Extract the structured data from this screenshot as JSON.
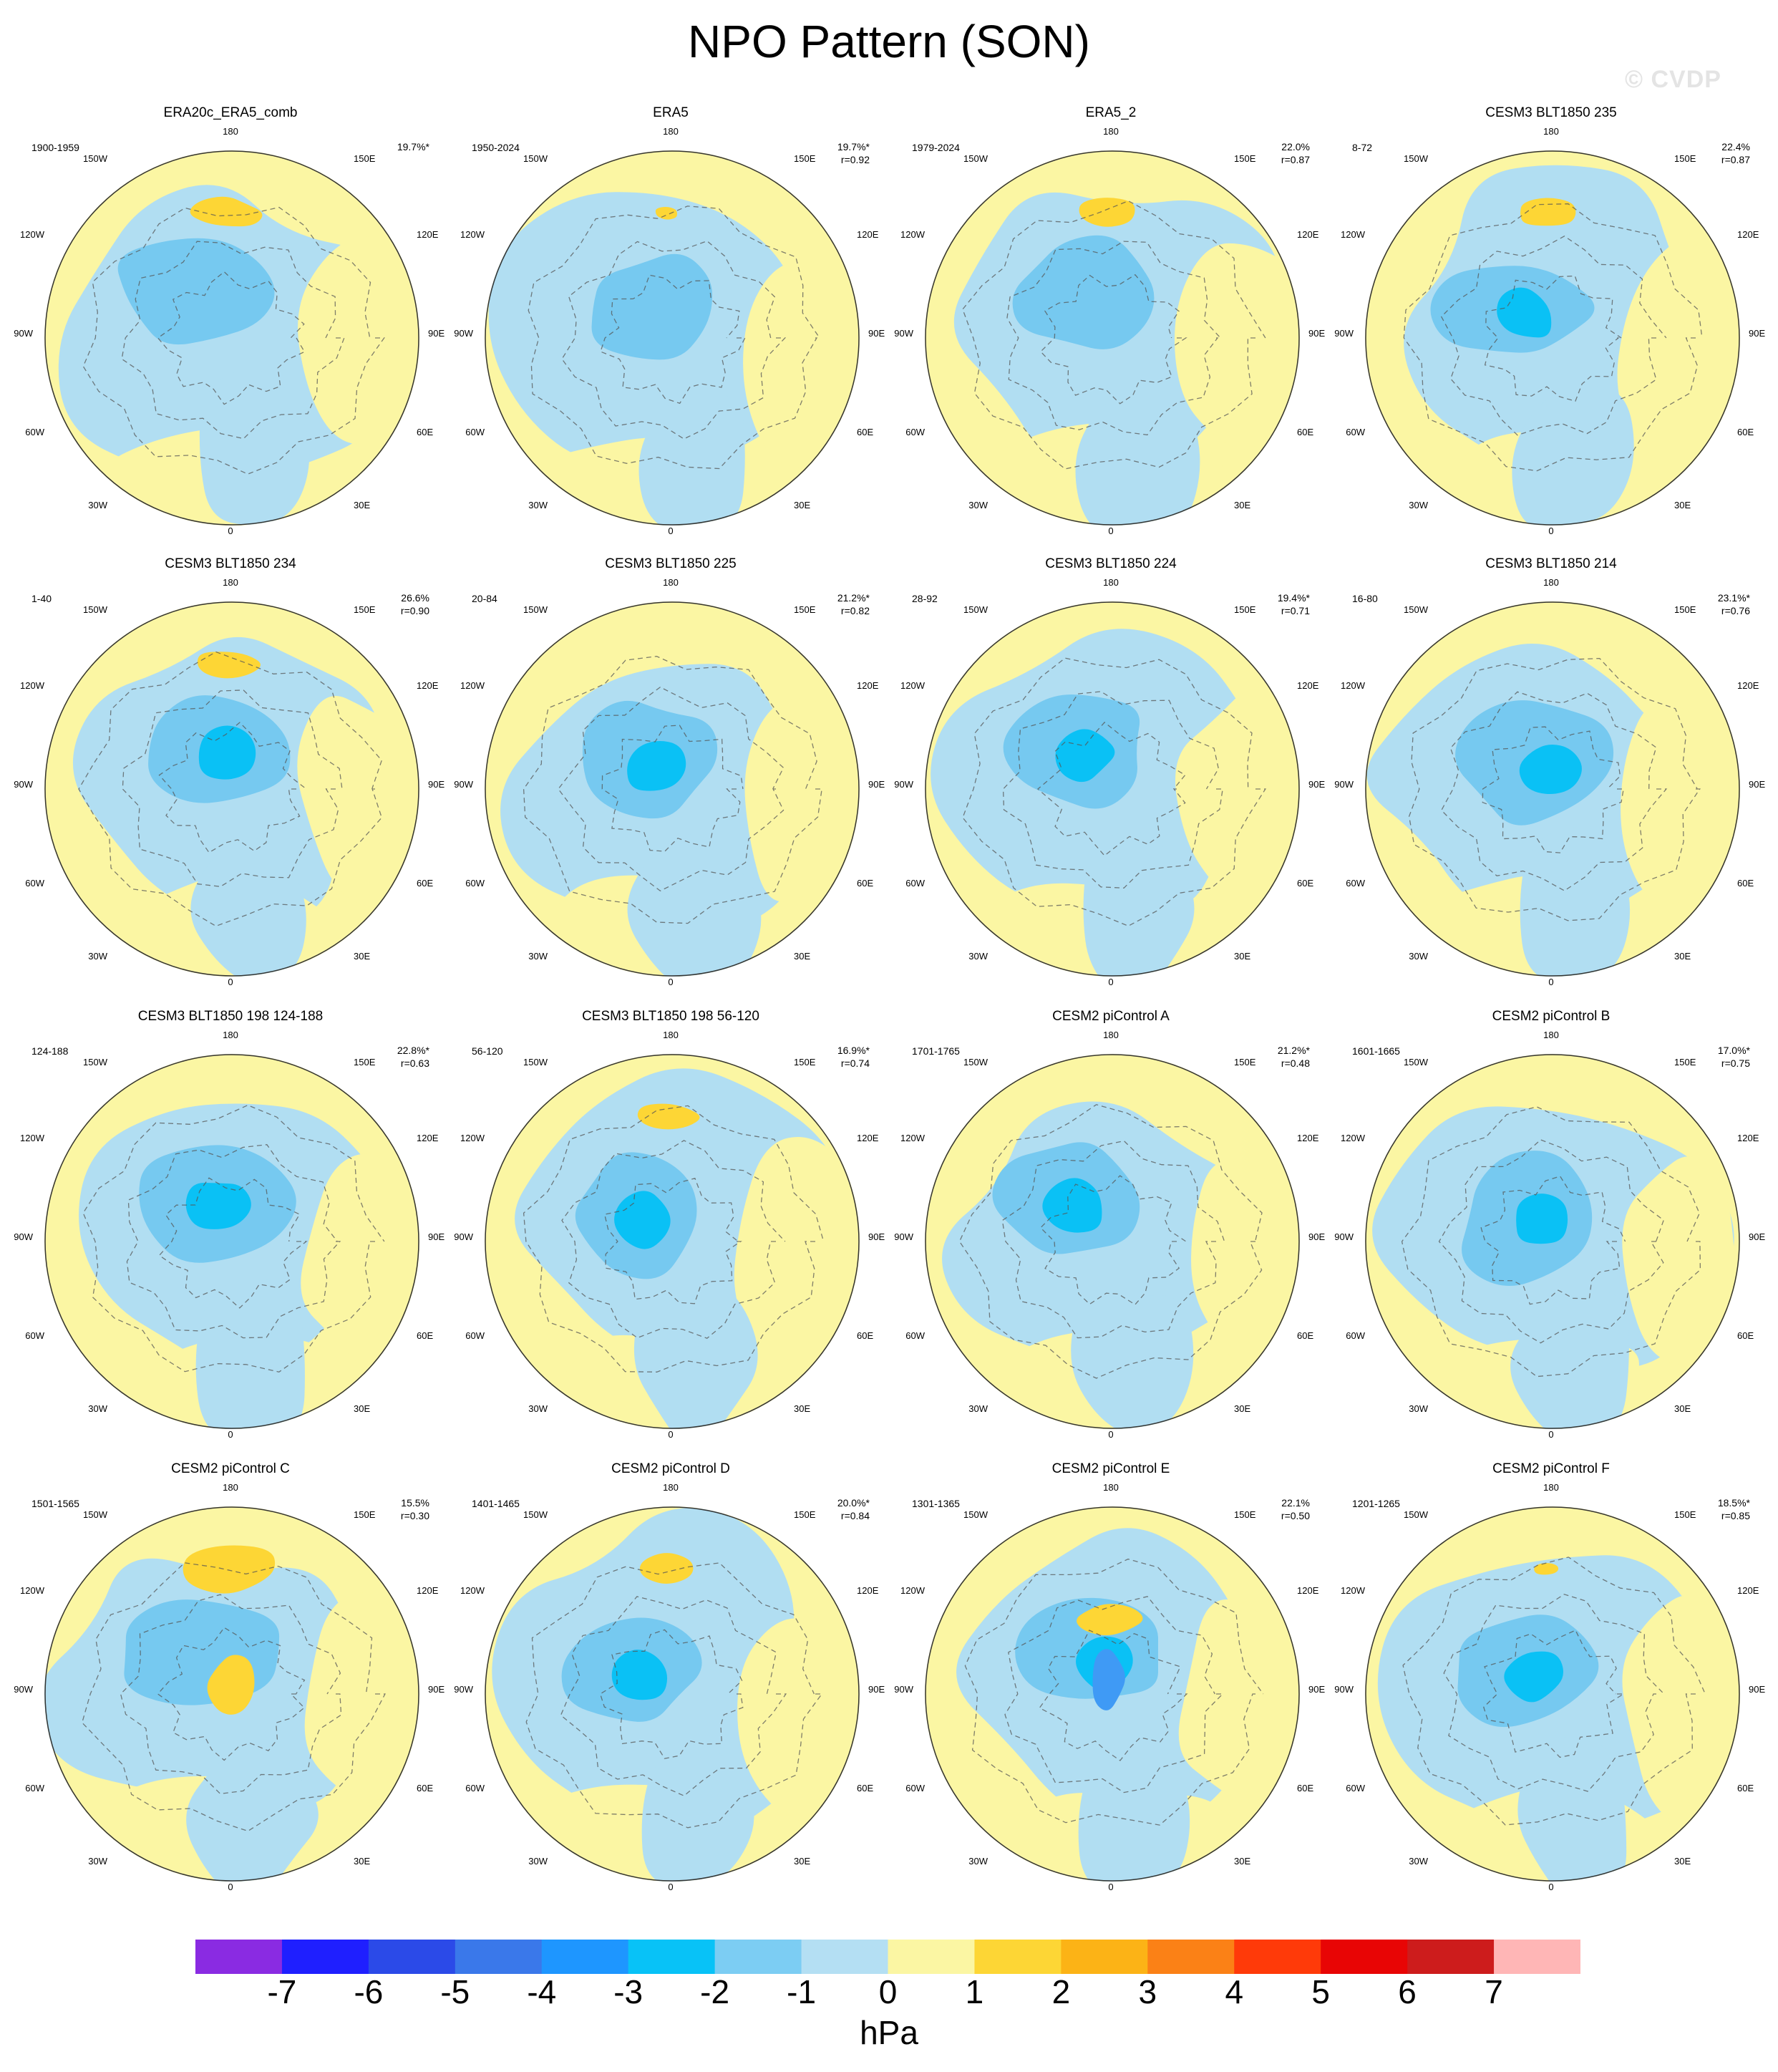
{
  "title": "NPO Pattern (SON)",
  "watermark": "© CVDP",
  "colors": {
    "neg_light": "#b1def2",
    "neg_mid": "#76c9f0",
    "neg_strong": "#0ac1f5",
    "neg_deep": "#3f9af5",
    "pos_light": "#fbf6a3",
    "pos_mid": "#fdd635",
    "pos_strong": "#fcb316",
    "coast": "#555555"
  },
  "map_labels": {
    "top": "180",
    "bottom": "0",
    "left_upper": "150W",
    "left_mid_upper": "120W",
    "left_mid": "90W",
    "left_mid_lower": "60W",
    "left_lower": "30W",
    "right_upper": "150E",
    "right_mid_upper": "120E",
    "right_mid": "90E",
    "right_mid_lower": "60E",
    "right_lower": "30E"
  },
  "panels": [
    {
      "title": "ERA20c_ERA5_comb",
      "period": "1900-1959",
      "pct": "19.7%*",
      "r": ""
    },
    {
      "title": "ERA5",
      "period": "1950-2024",
      "pct": "19.7%*",
      "r": "r=0.92"
    },
    {
      "title": "ERA5_2",
      "period": "1979-2024",
      "pct": "22.0%",
      "r": "r=0.87"
    },
    {
      "title": "CESM3 BLT1850 235",
      "period": "8-72",
      "pct": "22.4%",
      "r": "r=0.87"
    },
    {
      "title": "CESM3 BLT1850 234",
      "period": "1-40",
      "pct": "26.6%",
      "r": "r=0.90"
    },
    {
      "title": "CESM3 BLT1850 225",
      "period": "20-84",
      "pct": "21.2%*",
      "r": "r=0.82"
    },
    {
      "title": "CESM3 BLT1850 224",
      "period": "28-92",
      "pct": "19.4%*",
      "r": "r=0.71"
    },
    {
      "title": "CESM3 BLT1850 214",
      "period": "16-80",
      "pct": "23.1%*",
      "r": "r=0.76"
    },
    {
      "title": "CESM3 BLT1850 198 124-188",
      "period": "124-188",
      "pct": "22.8%*",
      "r": "r=0.63"
    },
    {
      "title": "CESM3 BLT1850 198 56-120",
      "period": "56-120",
      "pct": "16.9%*",
      "r": "r=0.74"
    },
    {
      "title": "CESM2 piControl A",
      "period": "1701-1765",
      "pct": "21.2%*",
      "r": "r=0.48"
    },
    {
      "title": "CESM2 piControl B",
      "period": "1601-1665",
      "pct": "17.0%*",
      "r": "r=0.75"
    },
    {
      "title": "CESM2 piControl C",
      "period": "1501-1565",
      "pct": "15.5%",
      "r": "r=0.30"
    },
    {
      "title": "CESM2 piControl D",
      "period": "1401-1465",
      "pct": "20.0%*",
      "r": "r=0.84"
    },
    {
      "title": "CESM2 piControl E",
      "period": "1301-1365",
      "pct": "22.1%",
      "r": "r=0.50"
    },
    {
      "title": "CESM2 piControl F",
      "period": "1201-1265",
      "pct": "18.5%*",
      "r": "r=0.85"
    }
  ],
  "chart_data": {
    "type": "heatmap",
    "title": "NPO Pattern (SON)",
    "projection": "polar stereographic, Northern Hemisphere",
    "colorbar": {
      "units": "hPa",
      "ticks": [
        "-7",
        "-6",
        "-5",
        "-4",
        "-3",
        "-2",
        "-1",
        "0",
        "1",
        "2",
        "3",
        "4",
        "5",
        "6",
        "7"
      ],
      "colors": [
        "#8a2be2",
        "#1f1fff",
        "#2b4ae8",
        "#3a78ea",
        "#1e96ff",
        "#08c2f7",
        "#7ccdf3",
        "#b4dff3",
        "#fbf6a3",
        "#fdd635",
        "#fcb316",
        "#fb8116",
        "#ff3a09",
        "#e80505",
        "#cd1c1c",
        "#ffb6b6"
      ],
      "placement": "bottom"
    },
    "panel_count": 16,
    "layout": "4x4 grid"
  }
}
